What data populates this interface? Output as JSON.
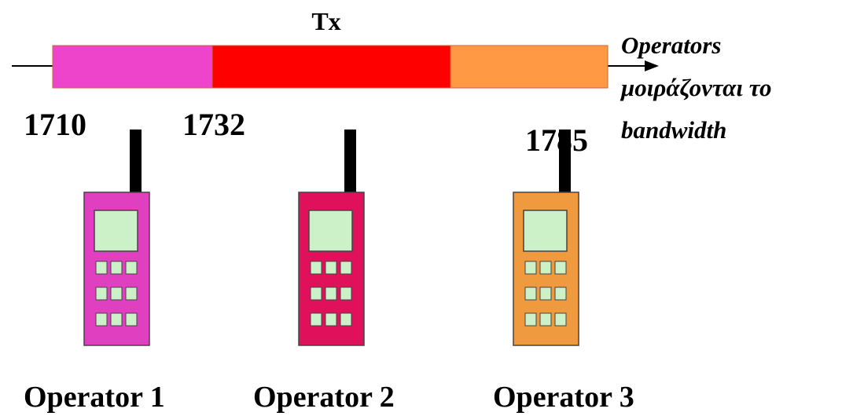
{
  "band": {
    "title": "Tx",
    "frequencies": [
      "1710",
      "1732",
      "1785"
    ]
  },
  "note": [
    "Operators",
    "μοιράζονται το",
    "bandwidth"
  ],
  "operators": [
    "Operator 1",
    "Operator 2",
    "Operator 3"
  ]
}
